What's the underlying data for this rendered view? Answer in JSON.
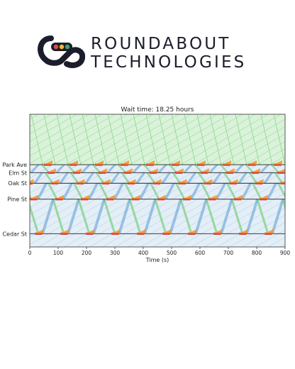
{
  "brand": {
    "line1": "ROUNDABOUT",
    "line2": "TECHNOLOGIES",
    "logo_icon": "infinity-loop-traffic-light-logo",
    "colors": {
      "dark": "#1b1d2c",
      "red": "#e8493f",
      "yellow": "#f2b632",
      "green": "#3aa85a"
    }
  },
  "chart_data": {
    "type": "line",
    "title": "Wait time: 18.25 hours",
    "xlabel": "Time (s)",
    "ylabel": "",
    "xlim": [
      0,
      900
    ],
    "xticks": [
      0,
      100,
      200,
      300,
      400,
      500,
      600,
      700,
      800,
      900
    ],
    "stations": [
      {
        "name": "Park Ave",
        "level": 0.62
      },
      {
        "name": "Elm St",
        "level": 0.56
      },
      {
        "name": "Oak St",
        "level": 0.48
      },
      {
        "name": "Pine St",
        "level": 0.36
      },
      {
        "name": "Cedar St",
        "level": 0.1
      }
    ],
    "signal_cycle_s": 90,
    "signal_offsets_s": [
      0,
      12,
      24,
      40,
      58
    ],
    "band_colors": {
      "green_band": "#5cc65c",
      "blue_band": "#5b9bd5",
      "red_phase": "#d62728",
      "orange_queue": "#f28e2b",
      "ped_fill": "#c9ecc9",
      "low_fill": "#dbe9f3"
    },
    "grid": false
  }
}
